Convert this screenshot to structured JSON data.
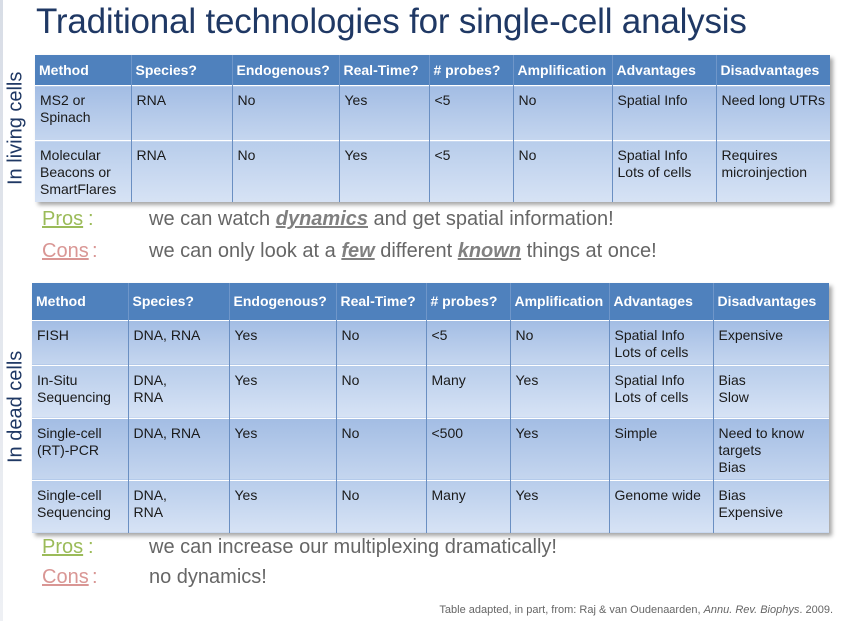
{
  "title": "Traditional technologies for single-cell analysis",
  "living": {
    "side_label": "In living cells",
    "headers": [
      "Method",
      "Species?",
      "Endogenous?",
      "Real-Time?",
      "# probes?",
      "Amplification",
      "Advantages",
      "Disadvantages"
    ],
    "rows": [
      [
        "MS2 or\nSpinach",
        "RNA",
        "No",
        "Yes",
        "<5",
        "No",
        "Spatial Info",
        "Need long UTRs"
      ],
      [
        "Molecular\nBeacons or\nSmartFlares",
        "RNA",
        "No",
        "Yes",
        "<5",
        "No",
        "Spatial Info\nLots of cells",
        "Requires\nmicroinjection"
      ]
    ],
    "pros": {
      "label": "Pros",
      "colon": ":",
      "before": "we can watch ",
      "emph": "dynamics",
      "after": " and get spatial information!"
    },
    "cons": {
      "label": "Cons",
      "colon": ":",
      "before": "we can only look at a ",
      "emph1": "few",
      "middle": " different ",
      "emph2": "known",
      "after": " things at once!"
    }
  },
  "dead": {
    "side_label": "In dead cells",
    "headers": [
      "Method",
      "Species?",
      "Endogenous?",
      "Real-Time?",
      "# probes?",
      "Amplification",
      "Advantages",
      "Disadvantages"
    ],
    "rows": [
      [
        "FISH",
        "DNA, RNA",
        "Yes",
        "No",
        "<5",
        "No",
        "Spatial Info\nLots of cells",
        "Expensive"
      ],
      [
        "In-Situ\nSequencing",
        "DNA,\nRNA",
        "Yes",
        "No",
        "Many",
        "Yes",
        "Spatial Info\nLots of cells",
        "Bias\nSlow"
      ],
      [
        "Single-cell\n(RT)-PCR",
        "DNA, RNA",
        "Yes",
        "No",
        "<500",
        "Yes",
        "Simple",
        "Need to know\ntargets\nBias"
      ],
      [
        "Single-cell\nSequencing",
        "DNA,\nRNA",
        "Yes",
        "No",
        "Many",
        "Yes",
        "Genome wide",
        "Bias\nExpensive"
      ]
    ],
    "pros": {
      "label": "Pros",
      "colon": ":",
      "text": "we can increase our multiplexing dramatically!"
    },
    "cons": {
      "label": "Cons",
      "colon": ":",
      "text": "no dynamics!"
    }
  },
  "source": {
    "prefix": "Table adapted, in part, from: Raj & van Oudenaarden, ",
    "journal": "Annu. Rev. Biophys",
    "suffix": ". 2009."
  },
  "colors": {
    "title": "#1f3864",
    "header_bg": "#4f81bd",
    "pros": "#9bbb59",
    "cons": "#d99694",
    "body_text": "#666666"
  }
}
